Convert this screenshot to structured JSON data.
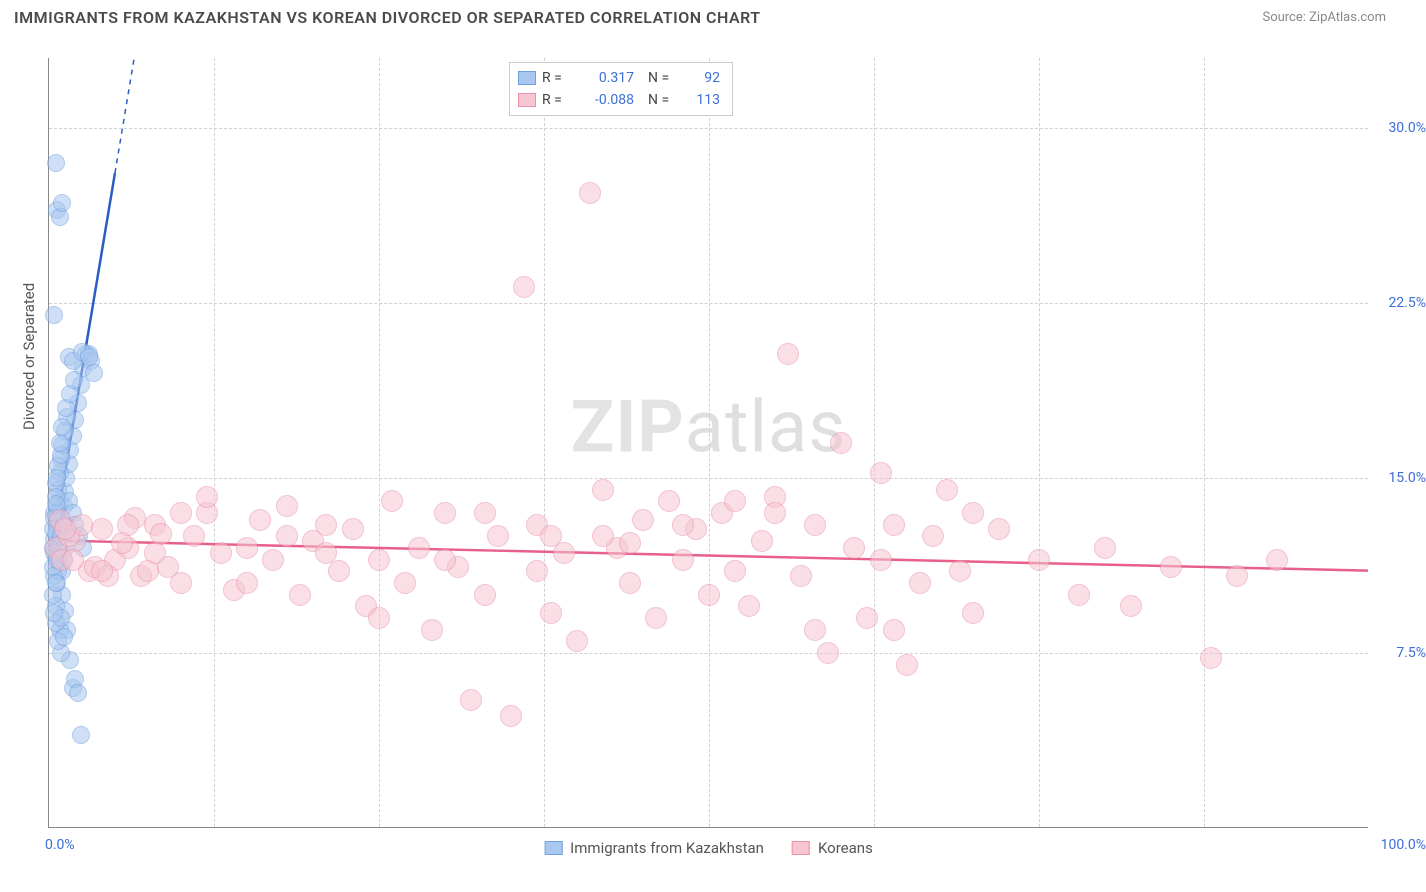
{
  "title": "IMMIGRANTS FROM KAZAKHSTAN VS KOREAN DIVORCED OR SEPARATED CORRELATION CHART",
  "source": "Source: ZipAtlas.com",
  "ylabel": "Divorced or Separated",
  "watermark_a": "ZIP",
  "watermark_b": "atlas",
  "chart": {
    "type": "scatter",
    "background_color": "#ffffff",
    "grid_color": "#d0d0d0",
    "axis_color": "#888888",
    "text_color": "#555555",
    "tick_color": "#3b6fd6",
    "xlim": [
      0,
      100
    ],
    "ylim": [
      0,
      33
    ],
    "xticks": [
      {
        "v": 0,
        "label": "0.0%"
      },
      {
        "v": 100,
        "label": "100.0%"
      }
    ],
    "xgrid": [
      12.5,
      25,
      37.5,
      50,
      62.5,
      75,
      87.5
    ],
    "yticks": [
      {
        "v": 7.5,
        "label": "7.5%"
      },
      {
        "v": 15.0,
        "label": "15.0%"
      },
      {
        "v": 22.5,
        "label": "22.5%"
      },
      {
        "v": 30.0,
        "label": "30.0%"
      }
    ],
    "series": [
      {
        "name": "Immigrants from Kazakhstan",
        "key": "blue",
        "R": "0.317",
        "N": "92",
        "fill": "#a9c7ef",
        "stroke": "#6fa0e0",
        "fill_opacity": 0.55,
        "radius": 9,
        "trend_color": "#2b5cc4",
        "trend_solid_xmax": 5,
        "trend": {
          "x1": 0.2,
          "y1": 11.8,
          "x2": 10,
          "y2": 45
        },
        "points": [
          [
            0.3,
            12.0
          ],
          [
            0.4,
            12.4
          ],
          [
            0.5,
            11.6
          ],
          [
            0.6,
            13.0
          ],
          [
            0.7,
            12.2
          ],
          [
            0.8,
            11.4
          ],
          [
            0.5,
            13.4
          ],
          [
            0.6,
            12.8
          ],
          [
            0.7,
            13.6
          ],
          [
            0.8,
            14.0
          ],
          [
            0.9,
            13.2
          ],
          [
            1.0,
            12.6
          ],
          [
            1.1,
            13.8
          ],
          [
            1.2,
            14.4
          ],
          [
            1.3,
            15.0
          ],
          [
            1.5,
            15.6
          ],
          [
            1.6,
            16.2
          ],
          [
            1.8,
            16.8
          ],
          [
            2.0,
            17.5
          ],
          [
            2.2,
            18.2
          ],
          [
            2.4,
            19.0
          ],
          [
            2.6,
            19.7
          ],
          [
            2.8,
            20.3
          ],
          [
            3.0,
            20.3
          ],
          [
            3.2,
            20.0
          ],
          [
            3.4,
            19.5
          ],
          [
            1.0,
            10.0
          ],
          [
            1.2,
            9.3
          ],
          [
            1.4,
            8.5
          ],
          [
            1.6,
            7.2
          ],
          [
            1.8,
            6.0
          ],
          [
            2.0,
            6.4
          ],
          [
            2.2,
            5.8
          ],
          [
            2.4,
            4.0
          ],
          [
            0.8,
            8.5
          ],
          [
            0.9,
            7.5
          ],
          [
            1.0,
            11.0
          ],
          [
            1.1,
            11.5
          ],
          [
            1.2,
            12.0
          ],
          [
            0.6,
            10.5
          ],
          [
            0.7,
            11.0
          ],
          [
            0.5,
            9.5
          ],
          [
            0.4,
            10.8
          ],
          [
            0.3,
            11.2
          ],
          [
            0.4,
            11.8
          ],
          [
            0.5,
            12.6
          ],
          [
            0.6,
            13.8
          ],
          [
            0.7,
            14.5
          ],
          [
            0.8,
            15.2
          ],
          [
            0.9,
            15.8
          ],
          [
            1.0,
            16.4
          ],
          [
            1.2,
            17.0
          ],
          [
            1.4,
            17.6
          ],
          [
            0.6,
            26.5
          ],
          [
            0.8,
            26.2
          ],
          [
            1.0,
            26.8
          ],
          [
            0.5,
            28.5
          ],
          [
            0.4,
            22.0
          ],
          [
            1.5,
            20.2
          ],
          [
            1.8,
            20.0
          ],
          [
            2.5,
            20.4
          ],
          [
            3.0,
            20.2
          ],
          [
            0.5,
            14.8
          ],
          [
            0.7,
            15.5
          ],
          [
            0.9,
            16.0
          ],
          [
            1.5,
            14.0
          ],
          [
            1.8,
            13.5
          ],
          [
            2.0,
            13.0
          ],
          [
            2.3,
            12.5
          ],
          [
            2.6,
            12.0
          ],
          [
            0.5,
            8.8
          ],
          [
            0.7,
            8.0
          ],
          [
            0.9,
            9.0
          ],
          [
            1.1,
            8.2
          ],
          [
            0.4,
            13.5
          ],
          [
            0.5,
            14.2
          ],
          [
            0.6,
            15.0
          ],
          [
            0.8,
            16.5
          ],
          [
            1.0,
            17.2
          ],
          [
            1.3,
            18.0
          ],
          [
            1.6,
            18.6
          ],
          [
            1.9,
            19.2
          ],
          [
            0.3,
            10.0
          ],
          [
            0.4,
            9.2
          ],
          [
            0.5,
            10.5
          ],
          [
            0.6,
            11.5
          ],
          [
            0.3,
            12.8
          ],
          [
            0.4,
            13.3
          ],
          [
            0.5,
            13.9
          ],
          [
            0.7,
            12.0
          ],
          [
            0.9,
            12.5
          ],
          [
            1.1,
            13.0
          ]
        ]
      },
      {
        "name": "Koreans",
        "key": "pink",
        "R": "-0.088",
        "N": "113",
        "fill": "#f6c6d2",
        "stroke": "#e98fa8",
        "fill_opacity": 0.55,
        "radius": 11,
        "trend_color": "#e85f8a",
        "trend_solid_xmax": 100,
        "trend": {
          "x1": 0,
          "y1": 12.3,
          "x2": 100,
          "y2": 11.0
        },
        "points": [
          [
            2,
            12.3
          ],
          [
            3,
            11.0
          ],
          [
            4,
            12.8
          ],
          [
            5,
            11.5
          ],
          [
            6,
            12.0
          ],
          [
            7,
            10.8
          ],
          [
            8,
            13.0
          ],
          [
            9,
            11.2
          ],
          [
            10,
            10.5
          ],
          [
            11,
            12.5
          ],
          [
            12,
            13.5
          ],
          [
            13,
            11.8
          ],
          [
            14,
            10.2
          ],
          [
            15,
            12.0
          ],
          [
            16,
            13.2
          ],
          [
            17,
            11.5
          ],
          [
            18,
            13.8
          ],
          [
            19,
            10.0
          ],
          [
            20,
            12.3
          ],
          [
            21,
            13.0
          ],
          [
            22,
            11.0
          ],
          [
            23,
            12.8
          ],
          [
            24,
            9.5
          ],
          [
            25,
            11.5
          ],
          [
            26,
            14.0
          ],
          [
            27,
            10.5
          ],
          [
            28,
            12.0
          ],
          [
            29,
            8.5
          ],
          [
            30,
            13.5
          ],
          [
            31,
            11.2
          ],
          [
            32,
            5.5
          ],
          [
            33,
            10.0
          ],
          [
            34,
            12.5
          ],
          [
            35,
            4.8
          ],
          [
            36,
            23.2
          ],
          [
            37,
            13.0
          ],
          [
            38,
            9.2
          ],
          [
            39,
            11.8
          ],
          [
            40,
            8.0
          ],
          [
            41,
            27.2
          ],
          [
            42,
            14.5
          ],
          [
            43,
            12.0
          ],
          [
            44,
            10.5
          ],
          [
            45,
            13.2
          ],
          [
            46,
            9.0
          ],
          [
            47,
            14.0
          ],
          [
            48,
            11.5
          ],
          [
            49,
            12.8
          ],
          [
            50,
            10.0
          ],
          [
            51,
            13.5
          ],
          [
            52,
            11.0
          ],
          [
            53,
            9.5
          ],
          [
            54,
            12.3
          ],
          [
            55,
            14.2
          ],
          [
            56,
            20.3
          ],
          [
            57,
            10.8
          ],
          [
            58,
            8.5
          ],
          [
            59,
            7.5
          ],
          [
            60,
            16.5
          ],
          [
            61,
            12.0
          ],
          [
            62,
            9.0
          ],
          [
            63,
            11.5
          ],
          [
            64,
            13.0
          ],
          [
            65,
            7.0
          ],
          [
            66,
            10.5
          ],
          [
            67,
            12.5
          ],
          [
            68,
            14.5
          ],
          [
            69,
            11.0
          ],
          [
            70,
            9.2
          ],
          [
            72,
            12.8
          ],
          [
            75,
            11.5
          ],
          [
            78,
            10.0
          ],
          [
            80,
            12.0
          ],
          [
            82,
            9.5
          ],
          [
            85,
            11.2
          ],
          [
            88,
            7.3
          ],
          [
            90,
            10.8
          ],
          [
            93,
            11.5
          ],
          [
            0.5,
            12.0
          ],
          [
            1,
            11.5
          ],
          [
            1.5,
            12.5
          ],
          [
            2.5,
            13.0
          ],
          [
            3.5,
            11.2
          ],
          [
            4.5,
            10.8
          ],
          [
            5.5,
            12.2
          ],
          [
            6.5,
            13.3
          ],
          [
            7.5,
            11.0
          ],
          [
            8.5,
            12.6
          ],
          [
            0.8,
            13.2
          ],
          [
            1.2,
            12.8
          ],
          [
            1.8,
            11.5
          ],
          [
            63,
            15.2
          ],
          [
            55,
            13.5
          ],
          [
            48,
            13.0
          ],
          [
            42,
            12.5
          ],
          [
            37,
            11.0
          ],
          [
            30,
            11.5
          ],
          [
            25,
            9.0
          ],
          [
            21,
            11.8
          ],
          [
            18,
            12.5
          ],
          [
            15,
            10.5
          ],
          [
            12,
            14.2
          ],
          [
            10,
            13.5
          ],
          [
            8,
            11.8
          ],
          [
            6,
            13.0
          ],
          [
            4,
            11.0
          ],
          [
            33,
            13.5
          ],
          [
            38,
            12.5
          ],
          [
            44,
            12.2
          ],
          [
            52,
            14.0
          ],
          [
            58,
            13.0
          ],
          [
            64,
            8.5
          ],
          [
            70,
            13.5
          ]
        ]
      }
    ]
  }
}
